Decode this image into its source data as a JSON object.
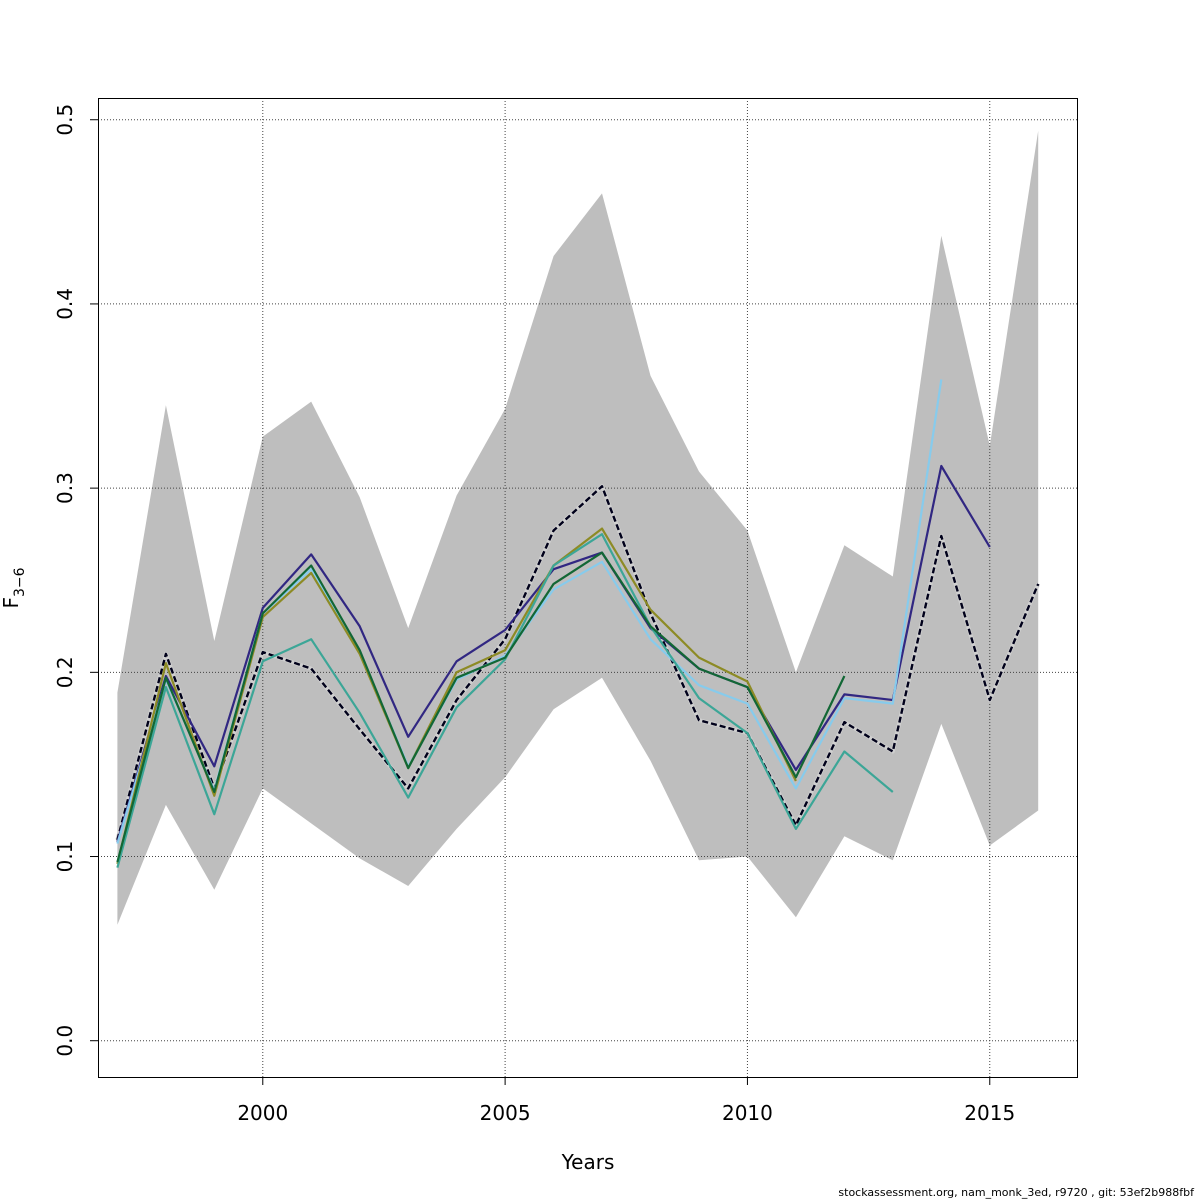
{
  "chart_data": {
    "type": "line",
    "xlabel": "Years",
    "ylabel": {
      "main": "F",
      "sub": "3−6"
    },
    "xlim": [
      1996.6,
      2016.8
    ],
    "ylim": [
      -0.0197,
      0.5118
    ],
    "x_ticks": [
      2000,
      2005,
      2010,
      2015
    ],
    "y_ticks": [
      0.0,
      0.1,
      0.2,
      0.3,
      0.4,
      0.5
    ],
    "y_tick_labels": [
      "0.0",
      "0.1",
      "0.2",
      "0.3",
      "0.4",
      "0.5"
    ],
    "grid": true,
    "confidence_band": {
      "color": "#bebebe",
      "x": [
        1997,
        1998,
        1999,
        2000,
        2001,
        2002,
        2003,
        2004,
        2005,
        2006,
        2007,
        2008,
        2009,
        2010,
        2011,
        2012,
        2013,
        2014,
        2015,
        2016
      ],
      "upper": [
        0.189,
        0.345,
        0.217,
        0.328,
        0.347,
        0.295,
        0.224,
        0.296,
        0.343,
        0.426,
        0.46,
        0.361,
        0.309,
        0.277,
        0.2,
        0.269,
        0.252,
        0.437,
        0.323,
        0.494
      ],
      "lower": [
        0.063,
        0.128,
        0.082,
        0.137,
        0.118,
        0.099,
        0.084,
        0.115,
        0.143,
        0.18,
        0.197,
        0.152,
        0.098,
        0.1,
        0.067,
        0.111,
        0.098,
        0.172,
        0.106,
        0.125
      ]
    },
    "series": [
      {
        "color": "#00001a",
        "dashed": true,
        "width": 2.4,
        "x": [
          1997,
          1998,
          1999,
          2000,
          2001,
          2002,
          2003,
          2004,
          2005,
          2006,
          2007,
          2008,
          2009,
          2010,
          2011,
          2012,
          2013,
          2014,
          2015,
          2016
        ],
        "values": [
          0.109,
          0.21,
          0.137,
          0.211,
          0.202,
          0.169,
          0.137,
          0.185,
          0.218,
          0.277,
          0.301,
          0.232,
          0.174,
          0.167,
          0.117,
          0.173,
          0.157,
          0.274,
          0.185,
          0.248
        ]
      },
      {
        "color": "#312782",
        "dashed": false,
        "width": 2.2,
        "x": [
          1997,
          1998,
          1999,
          2000,
          2001,
          2002,
          2003,
          2004,
          2005,
          2006,
          2007,
          2008,
          2009,
          2010,
          2011,
          2012,
          2013,
          2014,
          2015
        ],
        "values": [
          0.108,
          0.198,
          0.149,
          0.235,
          0.264,
          0.225,
          0.165,
          0.206,
          0.223,
          0.256,
          0.265,
          0.224,
          0.202,
          0.192,
          0.147,
          0.188,
          0.185,
          0.312,
          0.268
        ]
      },
      {
        "color": "#87cbec",
        "dashed": false,
        "width": 2.2,
        "x": [
          1997,
          1998,
          1999,
          2000,
          2001,
          2002,
          2003,
          2004,
          2005,
          2006,
          2007,
          2008,
          2009,
          2010,
          2011,
          2012,
          2013,
          2014
        ],
        "values": [
          0.107,
          0.196,
          0.136,
          0.232,
          0.256,
          0.211,
          0.149,
          0.196,
          0.209,
          0.245,
          0.26,
          0.218,
          0.193,
          0.183,
          0.137,
          0.186,
          0.183,
          0.359
        ]
      },
      {
        "color": "#8d8b25",
        "dashed": false,
        "width": 2.2,
        "x": [
          1997,
          1998,
          1999,
          2000,
          2001,
          2002,
          2003,
          2004,
          2005,
          2006,
          2007,
          2008,
          2009,
          2010,
          2011
        ],
        "values": [
          0.096,
          0.205,
          0.133,
          0.23,
          0.254,
          0.21,
          0.148,
          0.2,
          0.212,
          0.258,
          0.278,
          0.234,
          0.208,
          0.195,
          0.141
        ]
      },
      {
        "color": "#3ca697",
        "dashed": false,
        "width": 2.2,
        "x": [
          1997,
          1998,
          1999,
          2000,
          2001,
          2002,
          2003,
          2004,
          2005,
          2006,
          2007,
          2008,
          2009,
          2010,
          2011,
          2012,
          2013
        ],
        "values": [
          0.094,
          0.192,
          0.123,
          0.206,
          0.218,
          0.178,
          0.132,
          0.181,
          0.207,
          0.258,
          0.275,
          0.225,
          0.186,
          0.167,
          0.115,
          0.157,
          0.135
        ]
      },
      {
        "color": "#126735",
        "dashed": false,
        "width": 2.2,
        "x": [
          1997,
          1998,
          1999,
          2000,
          2001,
          2002,
          2003,
          2004,
          2005,
          2006,
          2007,
          2008,
          2009,
          2010,
          2011,
          2012
        ],
        "values": [
          0.097,
          0.197,
          0.135,
          0.232,
          0.258,
          0.212,
          0.148,
          0.197,
          0.208,
          0.248,
          0.265,
          0.225,
          0.202,
          0.192,
          0.143,
          0.198
        ]
      }
    ]
  },
  "footer": "stockassessment.org, nam_monk_3ed, r9720 , git: 53ef2b988fbf"
}
